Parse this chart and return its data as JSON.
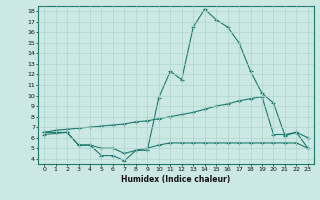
{
  "xlabel": "Humidex (Indice chaleur)",
  "background_color": "#cce8e4",
  "grid_color": "#b0d4ce",
  "line_color": "#1a7a6e",
  "xlim": [
    -0.5,
    23.5
  ],
  "ylim": [
    3.5,
    18.5
  ],
  "yticks": [
    4,
    5,
    6,
    7,
    8,
    9,
    10,
    11,
    12,
    13,
    14,
    15,
    16,
    17,
    18
  ],
  "xticks": [
    0,
    1,
    2,
    3,
    4,
    5,
    6,
    7,
    8,
    9,
    10,
    11,
    12,
    13,
    14,
    15,
    16,
    17,
    18,
    19,
    20,
    21,
    22,
    23
  ],
  "series1_x": [
    0,
    1,
    2,
    3,
    4,
    5,
    6,
    7,
    8,
    9,
    10,
    11,
    12,
    13,
    14,
    15,
    16,
    17,
    18,
    19,
    20,
    21,
    22,
    23
  ],
  "series1_y": [
    6.5,
    6.5,
    6.5,
    5.3,
    5.3,
    4.3,
    4.3,
    3.8,
    4.8,
    4.8,
    9.8,
    12.3,
    11.5,
    16.5,
    18.2,
    17.2,
    16.5,
    15.0,
    12.3,
    10.2,
    9.3,
    6.2,
    6.5,
    6.0
  ],
  "series2_x": [
    0,
    1,
    2,
    3,
    4,
    5,
    6,
    7,
    8,
    9,
    10,
    11,
    12,
    13,
    14,
    15,
    16,
    17,
    18,
    19,
    20,
    21,
    22,
    23
  ],
  "series2_y": [
    6.5,
    6.7,
    6.8,
    6.9,
    7.0,
    7.1,
    7.2,
    7.3,
    7.5,
    7.6,
    7.8,
    8.0,
    8.2,
    8.4,
    8.7,
    9.0,
    9.2,
    9.5,
    9.7,
    9.9,
    6.3,
    6.3,
    6.5,
    5.0
  ],
  "series3_x": [
    0,
    1,
    2,
    3,
    4,
    5,
    6,
    7,
    8,
    9,
    10,
    11,
    12,
    13,
    14,
    15,
    16,
    17,
    18,
    19,
    20,
    21,
    22,
    23
  ],
  "series3_y": [
    6.3,
    6.4,
    6.5,
    5.3,
    5.3,
    5.0,
    5.0,
    4.5,
    4.8,
    5.0,
    5.3,
    5.5,
    5.5,
    5.5,
    5.5,
    5.5,
    5.5,
    5.5,
    5.5,
    5.5,
    5.5,
    5.5,
    5.5,
    5.0
  ]
}
